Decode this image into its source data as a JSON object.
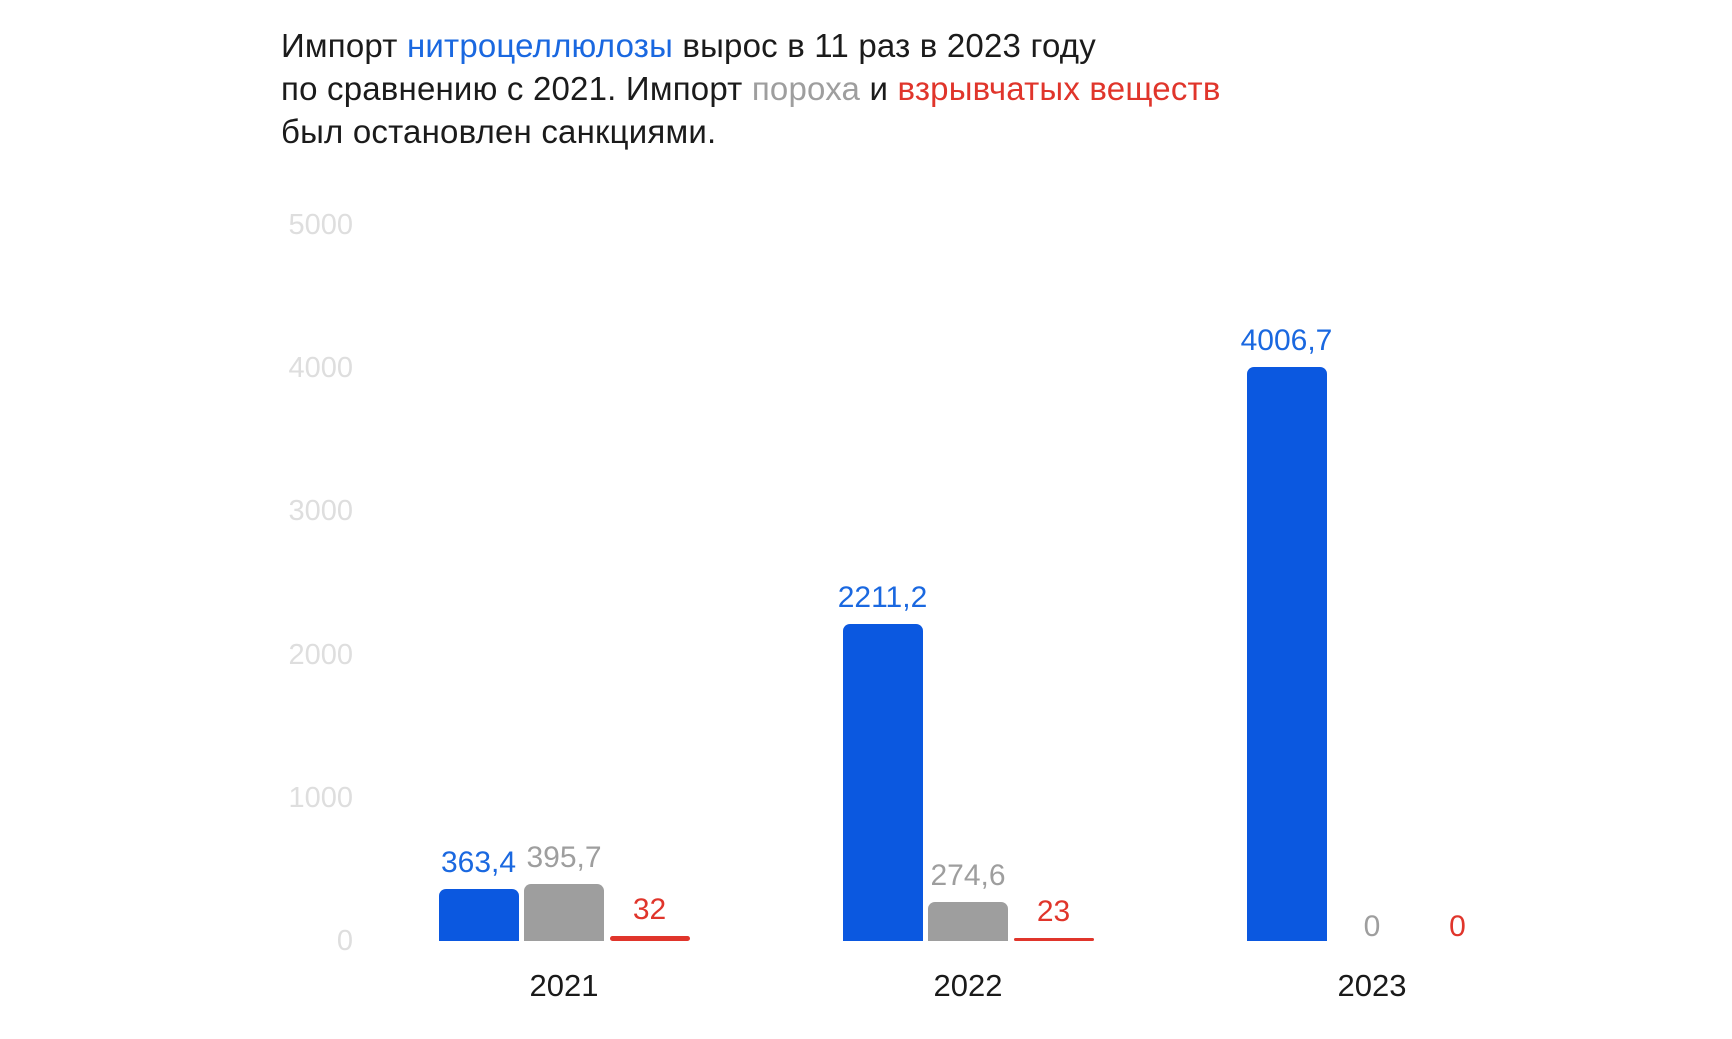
{
  "colors": {
    "background": "#ffffff",
    "ink": "#1b1b1b",
    "blue_text": "#1a68e0",
    "blue_bar": "#0b58e0",
    "gray": "#9e9e9e",
    "red": "#e0352b",
    "axis_label": "#dedede",
    "category": "#1a1a1a"
  },
  "title": {
    "lines": [
      [
        {
          "text": "Импорт ",
          "color": "ink"
        },
        {
          "text": "нитроцеллюлозы",
          "color": "blue_text"
        },
        {
          "text": " вырос в 11 раз в 2023 году",
          "color": "ink"
        }
      ],
      [
        {
          "text": "по сравнению с 2021. Импорт ",
          "color": "ink"
        },
        {
          "text": "пороха",
          "color": "gray"
        },
        {
          "text": " и ",
          "color": "ink"
        },
        {
          "text": "взрывчатых веществ",
          "color": "red"
        }
      ],
      [
        {
          "text": "был остановлен санкциями.",
          "color": "ink"
        }
      ]
    ]
  },
  "chart_data": {
    "type": "bar",
    "categories": [
      "2021",
      "2022",
      "2023"
    ],
    "series": [
      {
        "name": "нитроцеллюлоза",
        "color_key": "blue_bar",
        "label_color_key": "blue_text",
        "values": [
          363.4,
          2211.2,
          4006.7
        ],
        "value_labels": [
          "363,4",
          "2211,2",
          "4006,7"
        ]
      },
      {
        "name": "порох",
        "color_key": "gray",
        "label_color_key": "gray",
        "values": [
          395.7,
          274.6,
          0
        ],
        "value_labels": [
          "395,7",
          "274,6",
          "0"
        ]
      },
      {
        "name": "взрывчатые вещества",
        "color_key": "red",
        "label_color_key": "red",
        "values": [
          32,
          23,
          0
        ],
        "value_labels": [
          "32",
          "23",
          "0"
        ]
      }
    ],
    "yticks": [
      0,
      1000,
      2000,
      3000,
      4000,
      5000
    ],
    "ylim": [
      0,
      5000
    ],
    "grid": false,
    "legend": "none"
  }
}
